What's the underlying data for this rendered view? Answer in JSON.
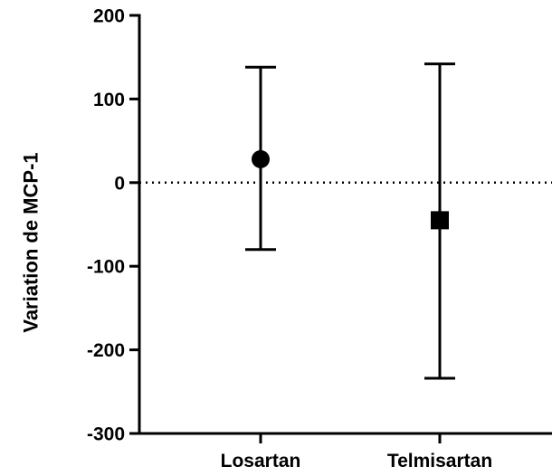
{
  "chart_data": {
    "type": "scatter",
    "title": "",
    "xlabel": "",
    "ylabel": "Variation de MCP-1",
    "categories": [
      "Losartan",
      "Telmisartan"
    ],
    "ylim": [
      -300,
      200
    ],
    "yticks": [
      -300,
      -200,
      -100,
      0,
      100,
      200
    ],
    "grid": false,
    "reference_line": {
      "y": 0,
      "style": "dotted"
    },
    "points": [
      {
        "category": "Losartan",
        "y": 28,
        "error_low": -80,
        "error_high": 138,
        "marker": "circle"
      },
      {
        "category": "Telmisartan",
        "y": -45,
        "error_low": -234,
        "error_high": 142,
        "marker": "square"
      }
    ],
    "colors": {
      "marker": "#000000",
      "axis": "#000000"
    }
  }
}
